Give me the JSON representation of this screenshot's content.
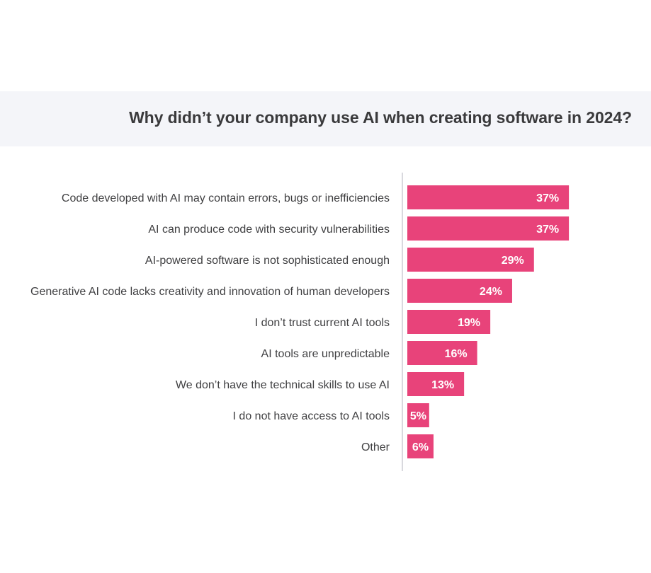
{
  "chart_data": {
    "type": "bar",
    "orientation": "horizontal",
    "title": "Why didn’t your company use AI when creating software in 2024?",
    "categories": [
      "Code developed with AI may contain errors, bugs or inefficiencies",
      "AI can produce code with security vulnerabilities",
      "AI-powered software is not sophisticated enough",
      "Generative AI code lacks creativity and innovation of human developers",
      "I don’t trust current AI tools",
      "AI tools are unpredictable",
      "We don’t have the technical skills to use AI",
      "I do not have access to AI tools",
      "Other"
    ],
    "values": [
      37,
      37,
      29,
      24,
      19,
      16,
      13,
      5,
      6
    ],
    "value_labels": [
      "37%",
      "37%",
      "29%",
      "24%",
      "19%",
      "16%",
      "13%",
      "5%",
      "6%"
    ],
    "unit": "%",
    "bar_color": "#e8437a",
    "axis_color": "#d9d9de",
    "grid": false,
    "legend": "none"
  }
}
